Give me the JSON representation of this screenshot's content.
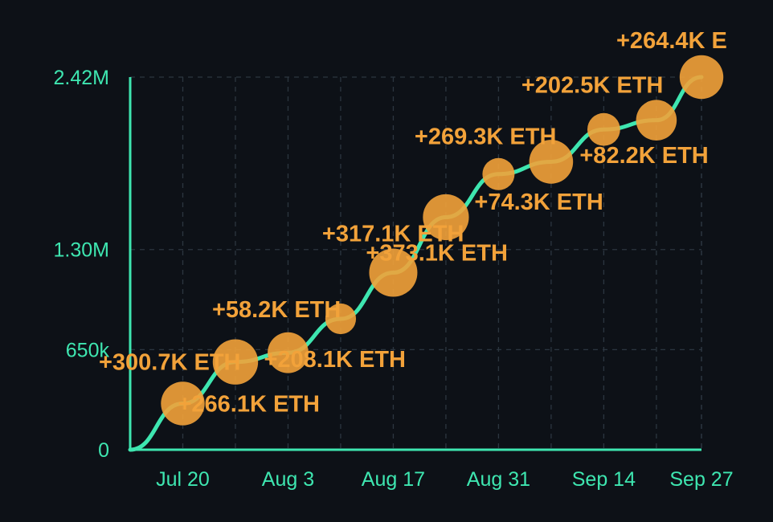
{
  "chart_data": {
    "type": "scatter",
    "title": "",
    "xlabel": "",
    "ylabel": "",
    "y_ticks": [
      "0",
      "650k",
      "1.30M",
      "2.42M"
    ],
    "y_tick_values": [
      0,
      650000,
      1300000,
      2420000
    ],
    "ylim": [
      0,
      2420000
    ],
    "x_ticks": [
      "Jul 20",
      "Aug 3",
      "Aug 17",
      "Aug 31",
      "Sep 14",
      "Sep 27"
    ],
    "x_tick_dates": [
      "2025-07-20",
      "2025-08-03",
      "2025-08-17",
      "2025-08-31",
      "2025-09-14",
      "2025-09-27"
    ],
    "xlim": [
      "2025-07-13",
      "2025-09-27"
    ],
    "grid": true,
    "legend": "none",
    "line_color": "#3ee6b0",
    "bubble_color": "#f2a23a",
    "label_color": "#f2a23a",
    "axis_color": "#3ee6b0",
    "background": "#0d1117",
    "series": [
      {
        "points": [
          {
            "x": "2025-07-20",
            "y": 300000,
            "label": "+266.1K ETH"
          },
          {
            "x": "2025-07-27",
            "y": 570000,
            "label": "+300.7K ETH"
          },
          {
            "x": "2025-08-03",
            "y": 630000,
            "label": "+208.1K ETH"
          },
          {
            "x": "2025-08-10",
            "y": 850000,
            "label": "+58.2K ETH"
          },
          {
            "x": "2025-08-17",
            "y": 1150000,
            "label": "+373.1K ETH"
          },
          {
            "x": "2025-08-24",
            "y": 1510000,
            "label": "+317.1K ETH"
          },
          {
            "x": "2025-08-31",
            "y": 1790000,
            "label": "+74.3K ETH"
          },
          {
            "x": "2025-09-07",
            "y": 1870000,
            "label": "+269.3K ETH"
          },
          {
            "x": "2025-09-14",
            "y": 2080000,
            "label": "+82.2K ETH"
          },
          {
            "x": "2025-09-21",
            "y": 2140000,
            "label": "+202.5K ETH"
          },
          {
            "x": "2025-09-27",
            "y": 2420000,
            "label": "+264.4K E"
          }
        ]
      }
    ]
  }
}
